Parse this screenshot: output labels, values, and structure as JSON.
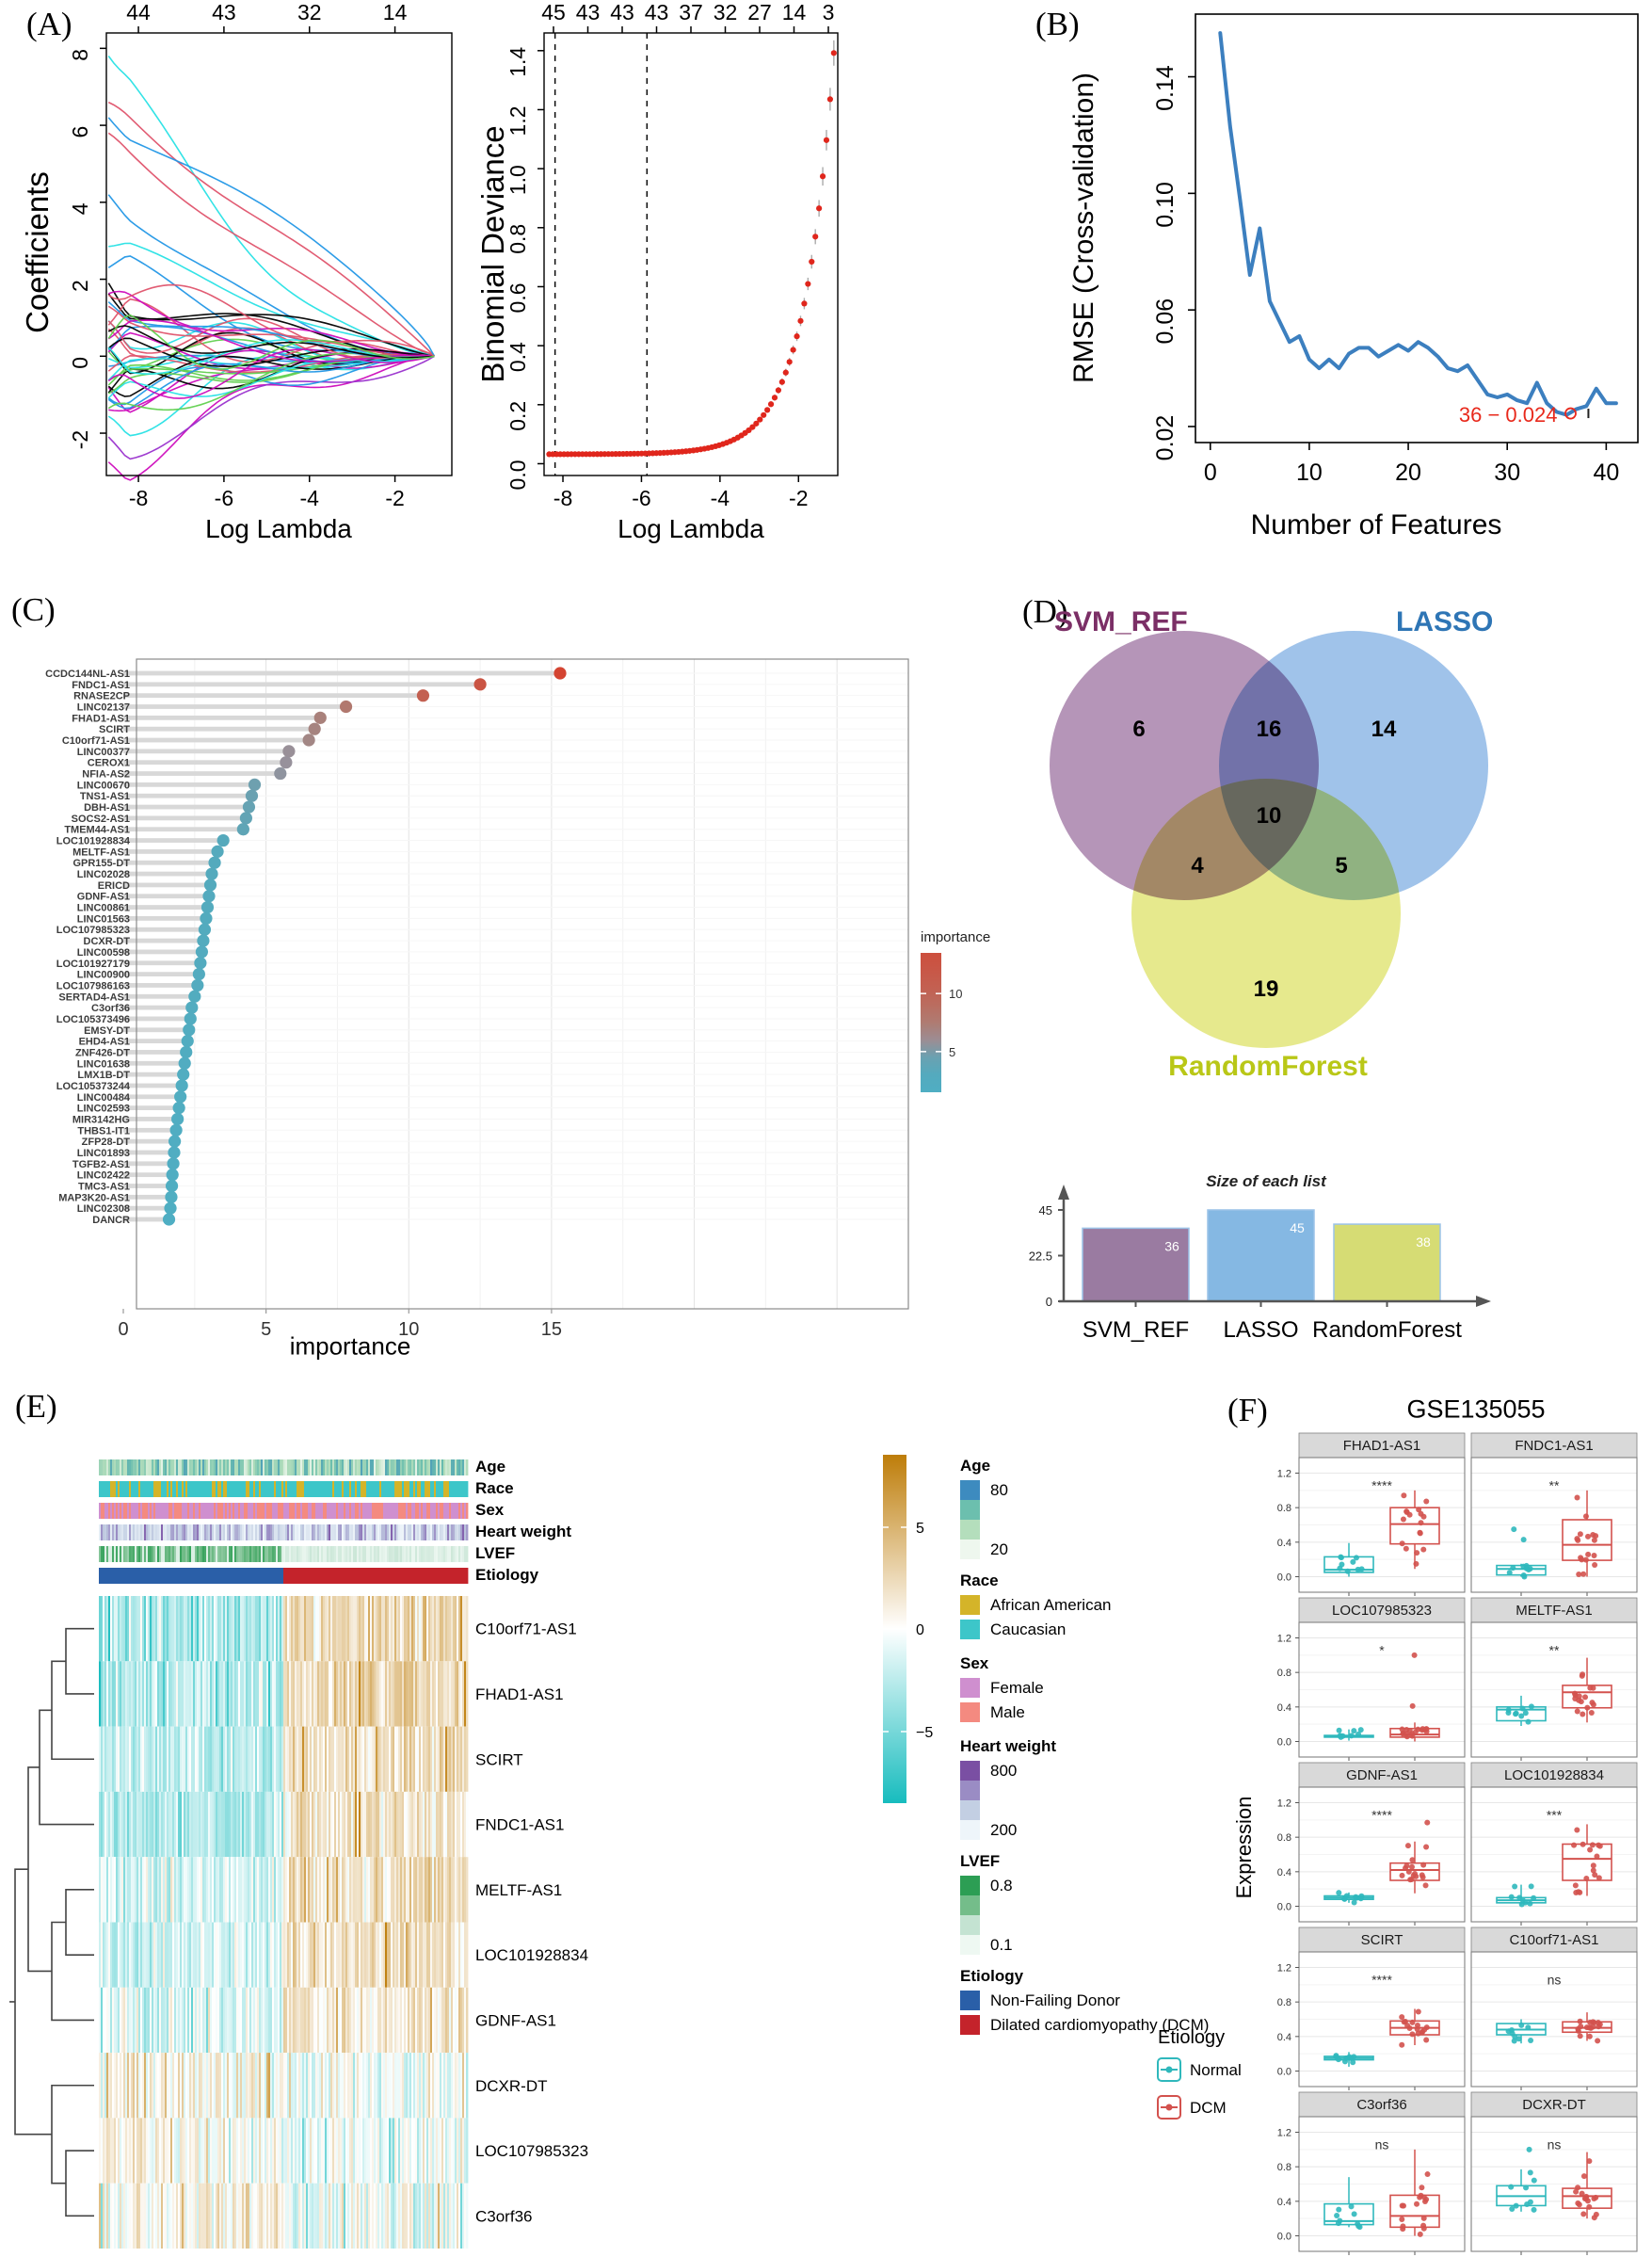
{
  "panel_labels": {
    "a": "(A)",
    "b": "(B)",
    "c": "(C)",
    "d": "(D)",
    "e": "(E)",
    "f": "(F)"
  },
  "chart_data": [
    {
      "id": "lasso_coefficients",
      "type": "line",
      "xlabel": "Log Lambda",
      "ylabel": "Coefficients",
      "top_axis_labels": [
        "44",
        "43",
        "32",
        "14"
      ],
      "x_ticks": [
        -8,
        -6,
        -4,
        -2
      ],
      "y_ticks": [
        -2,
        0,
        2,
        4,
        6,
        8
      ],
      "xlim": [
        -8.75,
        -0.67
      ],
      "ylim": [
        -3.1,
        8.4
      ],
      "n_lines": 45,
      "featured_starts": [
        7.8,
        6.6,
        6.2,
        5.8,
        4.2,
        2.85,
        2.3,
        1.9,
        -2.75,
        -2.1
      ],
      "featured_colors": [
        "#28E2E5",
        "#DF536B",
        "#2297E6",
        "#DF536B",
        "#2297E6",
        "#28E2E5",
        "#2297E6",
        "#000000",
        "#CD0BBC",
        "#9A32CD"
      ],
      "palette": [
        "#000000",
        "#DF536B",
        "#61D04F",
        "#2297E6",
        "#28E2E5",
        "#CD0BBC"
      ],
      "seed": 7
    },
    {
      "id": "binomial_deviance",
      "type": "scatter",
      "xlabel": "Log Lambda",
      "ylabel": "Binomial Deviance",
      "top_axis_labels": [
        "45",
        "43",
        "43",
        "43",
        "37",
        "32",
        "27",
        "14",
        "3"
      ],
      "x_ticks": [
        -8,
        -6,
        -4,
        -2
      ],
      "y_ticks": [
        0.0,
        0.2,
        0.4,
        0.6,
        0.8,
        1.0,
        1.2,
        1.4
      ],
      "xlim": [
        -8.48,
        -1.0
      ],
      "ylim": [
        -0.04,
        1.46
      ],
      "dashed_lines_x": [
        -8.2,
        -5.86
      ],
      "point_color": "#E0261C",
      "errorbar_color": "#AAAAAA",
      "curve": {
        "base": 0.032,
        "amp": 1.36,
        "rate": 1.3,
        "x_start": -8.35,
        "x_end": -1.1,
        "n": 78
      }
    },
    {
      "id": "rmse_cv",
      "type": "line",
      "xlabel": "Number of Features",
      "ylabel": "RMSE (Cross-validation)",
      "x_ticks": [
        0,
        10,
        20,
        30,
        40
      ],
      "y_ticks": [
        0.02,
        0.06,
        0.1,
        0.14
      ],
      "line_color": "#3C7FBF",
      "values": [
        0.155,
        0.123,
        0.098,
        0.072,
        0.088,
        0.063,
        0.056,
        0.049,
        0.051,
        0.043,
        0.04,
        0.043,
        0.04,
        0.045,
        0.047,
        0.047,
        0.044,
        0.046,
        0.048,
        0.046,
        0.049,
        0.047,
        0.044,
        0.04,
        0.039,
        0.041,
        0.036,
        0.031,
        0.03,
        0.031,
        0.029,
        0.028,
        0.035,
        0.028,
        0.025,
        0.024,
        0.026,
        0.027,
        0.033,
        0.028,
        0.028
      ],
      "annotation": {
        "text": "36 − 0.024",
        "x": 36.4,
        "y": 0.0245,
        "color": "#E8291C"
      }
    },
    {
      "id": "feature_importance",
      "type": "lollipop",
      "xlabel": "importance",
      "x_ticks": [
        0,
        5,
        10,
        15
      ],
      "legend": {
        "title": "importance",
        "ticks": [
          10,
          5
        ]
      },
      "stem_color": "#D8D8D8",
      "color_stops": [
        [
          1.5,
          "#4FAEC3"
        ],
        [
          4.0,
          "#57A8BA"
        ],
        [
          5.7,
          "#97919B"
        ],
        [
          7.0,
          "#AB8078"
        ],
        [
          10.0,
          "#C16354"
        ],
        [
          16.0,
          "#D6402C"
        ]
      ],
      "genes": [
        "CCDC144NL-AS1",
        "FNDC1-AS1",
        "RNASE2CP",
        "LINC02137",
        "FHAD1-AS1",
        "SCIRT",
        "C10orf71-AS1",
        "LINC00377",
        "CEROX1",
        "NFIA-AS2",
        "LINC00670",
        "TNS1-AS1",
        "DBH-AS1",
        "SOCS2-AS1",
        "TMEM44-AS1",
        "LOC101928834",
        "MELTF-AS1",
        "GPR155-DT",
        "LINC02028",
        "ERICD",
        "GDNF-AS1",
        "LINC00861",
        "LINC01563",
        "LOC107985323",
        "DCXR-DT",
        "LINC00598",
        "LOC101927179",
        "LINC00900",
        "LOC107986163",
        "SERTAD4-AS1",
        "C3orf36",
        "LOC105373496",
        "EMSY-DT",
        "EHD4-AS1",
        "ZNF426-DT",
        "LINC01638",
        "LMX1B-DT",
        "LOC105373244",
        "LINC00484",
        "LINC02593",
        "MIR3142HG",
        "THBS1-IT1",
        "ZFP28-DT",
        "LINC01893",
        "TGFB2-AS1",
        "LINC02422",
        "TMC3-AS1",
        "MAP3K20-AS1",
        "LINC02308",
        "DANCR"
      ],
      "values": [
        15.3,
        12.5,
        10.5,
        7.8,
        6.9,
        6.7,
        6.5,
        5.8,
        5.7,
        5.5,
        4.6,
        4.5,
        4.4,
        4.3,
        4.2,
        3.5,
        3.3,
        3.2,
        3.1,
        3.05,
        3.0,
        2.95,
        2.9,
        2.85,
        2.8,
        2.75,
        2.7,
        2.65,
        2.6,
        2.5,
        2.4,
        2.35,
        2.3,
        2.25,
        2.2,
        2.15,
        2.1,
        2.05,
        2.0,
        1.95,
        1.9,
        1.85,
        1.8,
        1.78,
        1.75,
        1.72,
        1.7,
        1.68,
        1.65,
        1.6
      ]
    },
    {
      "id": "venn",
      "type": "venn",
      "sets": [
        {
          "label": "SVM_REF",
          "fill": "#A883AC",
          "label_color": "#7B2F66",
          "only": 6
        },
        {
          "label": "LASSO",
          "fill": "#8FB8E6",
          "label_color": "#2E75B5",
          "only": 14
        },
        {
          "label": "RandomForest",
          "fill": "#E2E579",
          "label_color": "#B9C717",
          "only": 19
        }
      ],
      "overlaps": {
        "svm_lasso": 16,
        "svm_rf": 4,
        "lasso_rf": 5,
        "all": 10
      }
    },
    {
      "id": "list_sizes",
      "type": "bar",
      "title": "Size of each list",
      "categories": [
        "SVM_REF",
        "LASSO",
        "RandomForest"
      ],
      "values": [
        36,
        45,
        38
      ],
      "bar_colors": [
        "#9A7BA1",
        "#85B8E3",
        "#D6DC74"
      ],
      "y_ticks": [
        0,
        22.5,
        45
      ]
    },
    {
      "id": "dcm_heatmap",
      "type": "heatmap",
      "annotation_rows": [
        "Age",
        "Race",
        "Sex",
        "Heart weight",
        "LVEF",
        "Etiology"
      ],
      "genes": [
        "C10orf71-AS1",
        "FHAD1-AS1",
        "SCIRT",
        "FNDC1-AS1",
        "MELTF-AS1",
        "LOC101928834",
        "GDNF-AS1",
        "DCXR-DT",
        "LOC107985323",
        "C3orf36"
      ],
      "n_samples": 196,
      "nf_fraction": 0.5,
      "seed": 11,
      "value_colorbar": {
        "ticks": [
          "5",
          "0",
          "−5"
        ],
        "high_color": "#BE7D09",
        "mid_color": "#FFFFFF",
        "low_color": "#17BCBE",
        "range": [
          -8,
          8
        ]
      },
      "row_profiles": [
        {
          "left": -2.6,
          "right": 2.0,
          "noise": 2.4
        },
        {
          "left": -2.2,
          "right": 2.2,
          "noise": 2.2
        },
        {
          "left": -2.0,
          "right": 1.8,
          "noise": 2.0
        },
        {
          "left": -2.4,
          "right": 1.6,
          "noise": 2.0
        },
        {
          "left": -1.6,
          "right": 1.8,
          "noise": 2.2
        },
        {
          "left": -1.4,
          "right": 1.6,
          "noise": 2.0
        },
        {
          "left": -1.2,
          "right": 1.2,
          "noise": 2.2
        },
        {
          "left": 0.6,
          "right": -0.2,
          "noise": 2.4
        },
        {
          "left": 0.5,
          "right": -0.4,
          "noise": 2.2
        },
        {
          "left": 0.6,
          "right": -0.4,
          "noise": 2.6
        }
      ],
      "annotation_colors": {
        "age_gradient": [
          "#3D8BBF",
          "#6CBFAE",
          "#B4DEBC",
          "#EEF7EE"
        ],
        "race": {
          "african_american": "#D4B429",
          "caucasian": "#3DC6C9"
        },
        "sex": {
          "female": "#CF8FCF",
          "male": "#F48A80"
        },
        "heart_weight_gradient": [
          "#7A4FA3",
          "#9A8CC4",
          "#C3CFE3",
          "#EEF5FA"
        ],
        "lvef_gradient": [
          "#2C9E54",
          "#74BD8A",
          "#C4E3D2",
          "#EEF8F2"
        ],
        "etiology": {
          "nf": "#2A5FA8",
          "dcm": "#C4232B"
        }
      },
      "legends": [
        {
          "title": "Age",
          "kind": "gradient4",
          "colors": [
            "#3D8BBF",
            "#6CBFAE",
            "#B4DEBC",
            "#EEF7EE"
          ],
          "labels": [
            "80",
            "20"
          ]
        },
        {
          "title": "Race",
          "kind": "discrete",
          "items": [
            {
              "label": "African American",
              "color": "#D4B429"
            },
            {
              "label": "Caucasian",
              "color": "#3DC6C9"
            }
          ]
        },
        {
          "title": "Sex",
          "kind": "discrete",
          "items": [
            {
              "label": "Female",
              "color": "#CF8FCF"
            },
            {
              "label": "Male",
              "color": "#F48A80"
            }
          ]
        },
        {
          "title": "Heart weight",
          "kind": "gradient4",
          "colors": [
            "#7A4FA3",
            "#9A8CC4",
            "#C3CFE3",
            "#EEF5FA"
          ],
          "labels": [
            "800",
            "200"
          ]
        },
        {
          "title": "LVEF",
          "kind": "gradient4",
          "colors": [
            "#2C9E54",
            "#74BD8A",
            "#C4E3D2",
            "#EEF8F2"
          ],
          "labels": [
            "0.8",
            "0.1"
          ]
        },
        {
          "title": "Etiology",
          "kind": "discrete",
          "items": [
            {
              "label": "Non-Failing Donor",
              "color": "#2A5FA8"
            },
            {
              "label": "Dilated cardiomyopathy (DCM)",
              "color": "#C4232B"
            }
          ]
        }
      ]
    },
    {
      "id": "expression_boxplots",
      "type": "box",
      "title": "GSE135055",
      "ylabel": "Expression",
      "y_ticks": [
        "0.0",
        "0.4",
        "0.8",
        "1.2"
      ],
      "legend_title": "Etiology",
      "groups": [
        {
          "label": "Normal",
          "color": "#2FB8BC"
        },
        {
          "label": "DCM",
          "color": "#D3524E"
        }
      ],
      "n_normal": 9,
      "n_dcm": 17,
      "seed": 23,
      "facets": [
        {
          "gene": "FHAD1-AS1",
          "sig": "****",
          "normal": {
            "w": [
              0.0,
              0.39
            ],
            "box": [
              0.05,
              0.08,
              0.23
            ]
          },
          "dcm": {
            "w": [
              0.09,
              1.0
            ],
            "box": [
              0.38,
              0.61,
              0.8
            ]
          }
        },
        {
          "gene": "FNDC1-AS1",
          "sig": "**",
          "normal": {
            "w": [
              0.0,
              0.15
            ],
            "box": [
              0.02,
              0.09,
              0.13
            ],
            "out": [
              0.43,
              0.55
            ]
          },
          "dcm": {
            "w": [
              0.0,
              1.0
            ],
            "box": [
              0.19,
              0.37,
              0.66
            ]
          }
        },
        {
          "gene": "LOC107985323",
          "sig": "*",
          "normal": {
            "w": [
              0.01,
              0.14
            ],
            "box": [
              0.05,
              0.06,
              0.07
            ]
          },
          "dcm": {
            "w": [
              0.0,
              0.22
            ],
            "box": [
              0.05,
              0.08,
              0.15
            ],
            "out": [
              0.41,
              1.0
            ]
          }
        },
        {
          "gene": "MELTF-AS1",
          "sig": "**",
          "normal": {
            "w": [
              0.18,
              0.53
            ],
            "box": [
              0.24,
              0.37,
              0.4
            ]
          },
          "dcm": {
            "w": [
              0.22,
              0.97
            ],
            "box": [
              0.39,
              0.57,
              0.65
            ]
          }
        },
        {
          "gene": "GDNF-AS1",
          "sig": "****",
          "normal": {
            "w": [
              0.04,
              0.16
            ],
            "box": [
              0.08,
              0.1,
              0.12
            ]
          },
          "dcm": {
            "w": [
              0.15,
              0.75
            ],
            "box": [
              0.3,
              0.42,
              0.5
            ],
            "out": [
              0.97
            ]
          }
        },
        {
          "gene": "LOC101928834",
          "sig": "***",
          "normal": {
            "w": [
              0.02,
              0.25
            ],
            "box": [
              0.04,
              0.07,
              0.1
            ]
          },
          "dcm": {
            "w": [
              0.12,
              0.95
            ],
            "box": [
              0.3,
              0.55,
              0.72
            ]
          }
        },
        {
          "gene": "SCIRT",
          "sig": "****",
          "normal": {
            "w": [
              0.05,
              0.22
            ],
            "box": [
              0.13,
              0.15,
              0.17
            ]
          },
          "dcm": {
            "w": [
              0.3,
              0.72
            ],
            "box": [
              0.42,
              0.5,
              0.58
            ]
          }
        },
        {
          "gene": "C10orf71-AS1",
          "sig": "ns",
          "normal": {
            "w": [
              0.32,
              0.6
            ],
            "box": [
              0.42,
              0.48,
              0.55
            ]
          },
          "dcm": {
            "w": [
              0.35,
              0.68
            ],
            "box": [
              0.45,
              0.5,
              0.57
            ]
          }
        },
        {
          "gene": "C3orf36",
          "sig": "ns",
          "normal": {
            "w": [
              0.1,
              0.68
            ],
            "box": [
              0.13,
              0.17,
              0.37
            ]
          },
          "dcm": {
            "w": [
              0.0,
              1.0
            ],
            "box": [
              0.1,
              0.23,
              0.47
            ]
          }
        },
        {
          "gene": "DCXR-DT",
          "sig": "ns",
          "normal": {
            "w": [
              0.28,
              0.77
            ],
            "box": [
              0.35,
              0.46,
              0.58
            ],
            "out": [
              1.0
            ]
          },
          "dcm": {
            "w": [
              0.2,
              0.97
            ],
            "box": [
              0.32,
              0.46,
              0.55
            ]
          }
        }
      ]
    }
  ]
}
